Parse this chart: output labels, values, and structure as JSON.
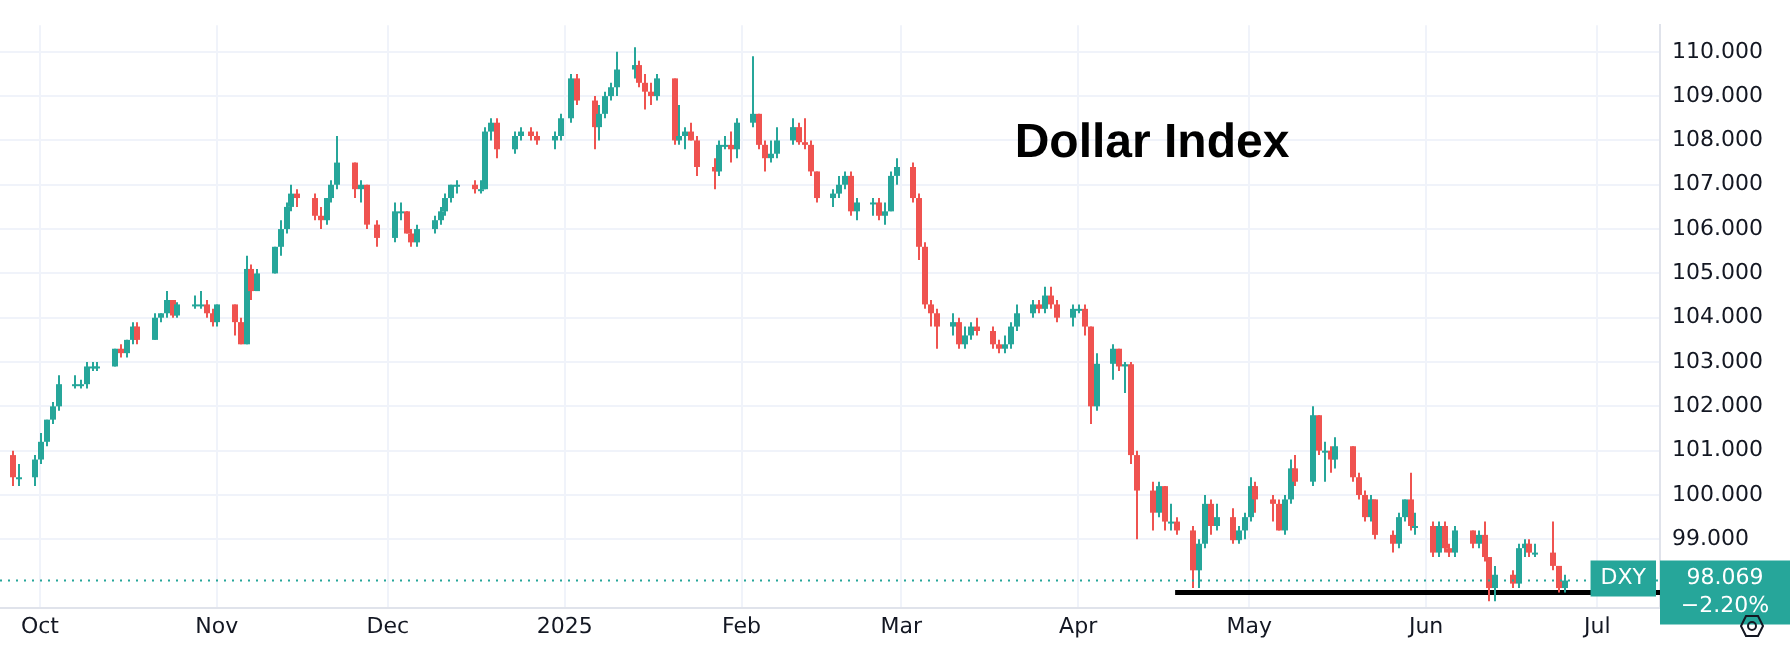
{
  "chart_data": {
    "type": "candlestick",
    "title": "Dollar Index",
    "x": [
      "2024-09-26",
      "2024-09-27",
      "2024-09-30",
      "2024-10-01",
      "2024-10-02",
      "2024-10-03",
      "2024-10-04",
      "2024-10-07",
      "2024-10-08",
      "2024-10-09",
      "2024-10-10",
      "2024-10-11",
      "2024-10-14",
      "2024-10-15",
      "2024-10-16",
      "2024-10-17",
      "2024-10-18",
      "2024-10-21",
      "2024-10-22",
      "2024-10-23",
      "2024-10-24",
      "2024-10-25",
      "2024-10-28",
      "2024-10-29",
      "2024-10-30",
      "2024-10-31",
      "2024-11-01",
      "2024-11-04",
      "2024-11-05",
      "2024-11-06",
      "2024-11-07",
      "2024-11-08",
      "2024-11-11",
      "2024-11-12",
      "2024-11-13",
      "2024-11-14",
      "2024-11-15",
      "2024-11-18",
      "2024-11-19",
      "2024-11-20",
      "2024-11-21",
      "2024-11-22",
      "2024-11-25",
      "2024-11-26",
      "2024-11-27",
      "2024-11-29",
      "2024-12-02",
      "2024-12-03",
      "2024-12-04",
      "2024-12-05",
      "2024-12-06",
      "2024-12-09",
      "2024-12-10",
      "2024-12-11",
      "2024-12-12",
      "2024-12-13",
      "2024-12-16",
      "2024-12-17",
      "2024-12-18",
      "2024-12-19",
      "2024-12-20",
      "2024-12-23",
      "2024-12-24",
      "2024-12-26",
      "2024-12-27",
      "2024-12-30",
      "2024-12-31",
      "2025-01-02",
      "2025-01-03",
      "2025-01-06",
      "2025-01-07",
      "2025-01-08",
      "2025-01-09",
      "2025-01-10",
      "2025-01-13",
      "2025-01-14",
      "2025-01-15",
      "2025-01-16",
      "2025-01-17",
      "2025-01-20",
      "2025-01-21",
      "2025-01-22",
      "2025-01-23",
      "2025-01-24",
      "2025-01-27",
      "2025-01-28",
      "2025-01-29",
      "2025-01-30",
      "2025-01-31",
      "2025-02-03",
      "2025-02-04",
      "2025-02-05",
      "2025-02-06",
      "2025-02-07",
      "2025-02-10",
      "2025-02-11",
      "2025-02-12",
      "2025-02-13",
      "2025-02-14",
      "2025-02-17",
      "2025-02-18",
      "2025-02-19",
      "2025-02-20",
      "2025-02-21",
      "2025-02-24",
      "2025-02-25",
      "2025-02-26",
      "2025-02-27",
      "2025-02-28",
      "2025-03-03",
      "2025-03-04",
      "2025-03-05",
      "2025-03-06",
      "2025-03-07",
      "2025-03-10",
      "2025-03-11",
      "2025-03-12",
      "2025-03-13",
      "2025-03-14",
      "2025-03-17",
      "2025-03-18",
      "2025-03-19",
      "2025-03-20",
      "2025-03-21",
      "2025-03-24",
      "2025-03-25",
      "2025-03-26",
      "2025-03-27",
      "2025-03-28",
      "2025-03-31",
      "2025-04-01",
      "2025-04-02",
      "2025-04-03",
      "2025-04-04",
      "2025-04-07",
      "2025-04-08",
      "2025-04-09",
      "2025-04-10",
      "2025-04-11",
      "2025-04-14",
      "2025-04-15",
      "2025-04-16",
      "2025-04-17",
      "2025-04-18",
      "2025-04-21",
      "2025-04-22",
      "2025-04-23",
      "2025-04-24",
      "2025-04-25",
      "2025-04-28",
      "2025-04-29",
      "2025-04-30",
      "2025-05-01",
      "2025-05-02",
      "2025-05-05",
      "2025-05-06",
      "2025-05-07",
      "2025-05-08",
      "2025-05-09",
      "2025-05-12",
      "2025-05-13",
      "2025-05-14",
      "2025-05-15",
      "2025-05-16",
      "2025-05-19",
      "2025-05-20",
      "2025-05-21",
      "2025-05-22",
      "2025-05-23",
      "2025-05-26",
      "2025-05-27",
      "2025-05-28",
      "2025-05-29",
      "2025-05-30",
      "2025-06-02",
      "2025-06-03",
      "2025-06-04",
      "2025-06-05",
      "2025-06-06",
      "2025-06-09",
      "2025-06-10",
      "2025-06-11",
      "2025-06-12",
      "2025-06-13",
      "2025-06-16",
      "2025-06-17",
      "2025-06-18",
      "2025-06-19",
      "2025-06-20",
      "2025-06-23",
      "2025-06-24",
      "2025-06-25"
    ],
    "ohlc": [
      [
        100.9,
        101.0,
        100.2,
        100.4
      ],
      [
        100.4,
        100.7,
        100.2,
        100.4
      ],
      [
        100.4,
        100.9,
        100.2,
        100.8
      ],
      [
        100.8,
        101.4,
        100.7,
        101.2
      ],
      [
        101.2,
        101.7,
        101.1,
        101.7
      ],
      [
        101.7,
        102.1,
        101.6,
        102.0
      ],
      [
        102.0,
        102.7,
        101.9,
        102.5
      ],
      [
        102.5,
        102.7,
        102.4,
        102.5
      ],
      [
        102.5,
        102.6,
        102.4,
        102.5
      ],
      [
        102.5,
        103.0,
        102.4,
        102.9
      ],
      [
        102.9,
        103.0,
        102.8,
        102.9
      ],
      [
        102.9,
        103.0,
        102.8,
        102.9
      ],
      [
        102.9,
        103.3,
        102.9,
        103.3
      ],
      [
        103.3,
        103.4,
        103.1,
        103.2
      ],
      [
        103.2,
        103.5,
        103.1,
        103.5
      ],
      [
        103.5,
        103.9,
        103.4,
        103.8
      ],
      [
        103.8,
        103.9,
        103.4,
        103.5
      ],
      [
        103.5,
        104.1,
        103.5,
        104.0
      ],
      [
        104.0,
        104.1,
        103.9,
        104.1
      ],
      [
        104.1,
        104.6,
        104.0,
        104.4
      ],
      [
        104.4,
        104.4,
        104.0,
        104.05
      ],
      [
        104.05,
        104.35,
        104.0,
        104.3
      ],
      [
        104.3,
        104.5,
        104.2,
        104.3
      ],
      [
        104.3,
        104.6,
        104.2,
        104.3
      ],
      [
        104.3,
        104.4,
        104.0,
        104.1
      ],
      [
        104.1,
        104.2,
        103.8,
        103.9
      ],
      [
        103.9,
        104.3,
        103.8,
        104.3
      ],
      [
        104.3,
        104.3,
        103.6,
        103.9
      ],
      [
        103.9,
        104.0,
        103.4,
        103.4
      ],
      [
        103.4,
        105.4,
        103.4,
        105.1
      ],
      [
        105.1,
        105.2,
        104.4,
        104.6
      ],
      [
        104.6,
        105.1,
        104.6,
        105.0
      ],
      [
        105.0,
        105.6,
        105.0,
        105.6
      ],
      [
        105.6,
        106.2,
        105.4,
        106.0
      ],
      [
        106.0,
        106.6,
        105.9,
        106.5
      ],
      [
        106.5,
        107.0,
        106.4,
        106.8
      ],
      [
        106.8,
        106.9,
        106.5,
        106.7
      ],
      [
        106.7,
        106.8,
        106.2,
        106.3
      ],
      [
        106.3,
        106.5,
        106.0,
        106.2
      ],
      [
        106.2,
        106.7,
        106.1,
        106.7
      ],
      [
        106.7,
        107.1,
        106.6,
        107.0
      ],
      [
        107.0,
        108.1,
        106.9,
        107.5
      ],
      [
        107.5,
        107.5,
        106.7,
        106.9
      ],
      [
        106.9,
        107.1,
        106.6,
        107.0
      ],
      [
        107.0,
        107.0,
        106.0,
        106.1
      ],
      [
        106.1,
        106.2,
        105.6,
        105.8
      ],
      [
        105.8,
        106.6,
        105.7,
        106.4
      ],
      [
        106.4,
        106.6,
        106.2,
        106.4
      ],
      [
        106.4,
        106.4,
        105.9,
        105.9
      ],
      [
        105.9,
        106.0,
        105.6,
        105.7
      ],
      [
        105.7,
        106.1,
        105.6,
        106.0
      ],
      [
        106.0,
        106.3,
        105.9,
        106.2
      ],
      [
        106.2,
        106.5,
        106.1,
        106.4
      ],
      [
        106.4,
        106.8,
        106.3,
        106.7
      ],
      [
        106.7,
        107.0,
        106.6,
        107.0
      ],
      [
        107.0,
        107.1,
        106.8,
        107.0
      ],
      [
        107.0,
        107.1,
        106.8,
        106.9
      ],
      [
        106.9,
        107.1,
        106.8,
        106.9
      ],
      [
        106.9,
        108.3,
        106.9,
        108.2
      ],
      [
        108.2,
        108.5,
        108.0,
        108.4
      ],
      [
        108.4,
        108.5,
        107.6,
        107.8
      ],
      [
        107.8,
        108.2,
        107.7,
        108.1
      ],
      [
        108.1,
        108.3,
        108.0,
        108.2
      ],
      [
        108.2,
        108.3,
        108.0,
        108.1
      ],
      [
        108.1,
        108.2,
        107.9,
        108.0
      ],
      [
        108.0,
        108.2,
        107.8,
        108.1
      ],
      [
        108.1,
        108.6,
        108.0,
        108.5
      ],
      [
        108.5,
        109.5,
        108.4,
        109.4
      ],
      [
        109.4,
        109.5,
        108.8,
        108.9
      ],
      [
        108.9,
        109.0,
        107.8,
        108.3
      ],
      [
        108.3,
        108.8,
        108.0,
        108.6
      ],
      [
        108.6,
        109.1,
        108.5,
        109.0
      ],
      [
        109.0,
        109.3,
        108.9,
        109.2
      ],
      [
        109.2,
        110.0,
        109.0,
        109.6
      ],
      [
        109.6,
        110.1,
        109.4,
        109.7
      ],
      [
        109.7,
        109.8,
        109.2,
        109.3
      ],
      [
        109.3,
        109.5,
        108.7,
        109.1
      ],
      [
        109.1,
        109.3,
        108.8,
        109.0
      ],
      [
        109.0,
        109.5,
        108.9,
        109.4
      ],
      [
        109.4,
        109.4,
        107.9,
        108.0
      ],
      [
        108.0,
        108.8,
        107.9,
        108.1
      ],
      [
        108.1,
        108.3,
        107.8,
        108.2
      ],
      [
        108.2,
        108.4,
        108.0,
        108.0
      ],
      [
        108.0,
        108.1,
        107.2,
        107.4
      ],
      [
        107.4,
        107.6,
        106.9,
        107.3
      ],
      [
        107.3,
        108.0,
        107.2,
        107.9
      ],
      [
        107.9,
        108.1,
        107.8,
        107.9
      ],
      [
        107.9,
        108.2,
        107.5,
        107.8
      ],
      [
        107.8,
        108.5,
        107.6,
        108.4
      ],
      [
        108.4,
        109.9,
        108.3,
        108.6
      ],
      [
        108.6,
        108.6,
        107.8,
        107.9
      ],
      [
        107.9,
        108.0,
        107.3,
        107.6
      ],
      [
        107.6,
        108.0,
        107.5,
        107.7
      ],
      [
        107.7,
        108.3,
        107.6,
        108.0
      ],
      [
        108.0,
        108.5,
        107.9,
        108.3
      ],
      [
        108.3,
        108.4,
        107.9,
        107.96
      ],
      [
        107.96,
        108.5,
        107.8,
        107.9
      ],
      [
        107.9,
        108.0,
        107.2,
        107.3
      ],
      [
        107.3,
        107.3,
        106.6,
        106.7
      ],
      [
        106.7,
        106.9,
        106.5,
        106.8
      ],
      [
        106.8,
        107.2,
        106.7,
        107.0
      ],
      [
        107.0,
        107.3,
        106.9,
        107.2
      ],
      [
        107.2,
        107.3,
        106.3,
        106.4
      ],
      [
        106.4,
        106.7,
        106.2,
        106.6
      ],
      [
        106.6,
        106.7,
        106.3,
        106.6
      ],
      [
        106.6,
        106.7,
        106.2,
        106.3
      ],
      [
        106.3,
        106.6,
        106.1,
        106.4
      ],
      [
        106.4,
        107.3,
        106.4,
        107.2
      ],
      [
        107.2,
        107.6,
        107.0,
        107.4
      ],
      [
        107.4,
        107.5,
        106.6,
        106.7
      ],
      [
        106.7,
        106.8,
        105.3,
        105.6
      ],
      [
        105.6,
        105.7,
        104.2,
        104.3
      ],
      [
        104.3,
        104.4,
        103.8,
        104.1
      ],
      [
        104.1,
        104.2,
        103.3,
        103.8
      ],
      [
        103.8,
        104.1,
        103.6,
        103.9
      ],
      [
        103.9,
        104.0,
        103.3,
        103.4
      ],
      [
        103.4,
        103.8,
        103.3,
        103.6
      ],
      [
        103.6,
        103.9,
        103.5,
        103.8
      ],
      [
        103.8,
        104.0,
        103.6,
        103.7
      ],
      [
        103.7,
        103.8,
        103.3,
        103.4
      ],
      [
        103.4,
        103.5,
        103.2,
        103.3
      ],
      [
        103.3,
        103.6,
        103.2,
        103.4
      ],
      [
        103.4,
        103.9,
        103.3,
        103.8
      ],
      [
        103.8,
        104.3,
        103.7,
        104.1
      ],
      [
        104.1,
        104.4,
        104.0,
        104.3
      ],
      [
        104.3,
        104.4,
        104.1,
        104.2
      ],
      [
        104.2,
        104.7,
        104.1,
        104.5
      ],
      [
        104.5,
        104.7,
        104.2,
        104.3
      ],
      [
        104.3,
        104.4,
        103.9,
        104.0
      ],
      [
        104.0,
        104.3,
        103.8,
        104.2
      ],
      [
        104.2,
        104.3,
        104.1,
        104.2
      ],
      [
        104.2,
        104.3,
        103.6,
        103.8
      ],
      [
        103.8,
        103.8,
        101.6,
        102.0
      ],
      [
        102.0,
        103.2,
        101.9,
        102.96
      ],
      [
        102.96,
        103.4,
        102.6,
        103.3
      ],
      [
        103.3,
        103.3,
        102.8,
        102.9
      ],
      [
        102.9,
        103.0,
        102.3,
        102.95
      ],
      [
        102.95,
        103.0,
        100.7,
        100.9
      ],
      [
        100.9,
        101.0,
        99.0,
        100.1
      ],
      [
        100.1,
        100.3,
        99.2,
        99.6
      ],
      [
        99.6,
        100.3,
        99.5,
        100.2
      ],
      [
        100.2,
        100.2,
        99.2,
        99.4
      ],
      [
        99.4,
        99.8,
        99.2,
        99.4
      ],
      [
        99.4,
        99.5,
        99.1,
        99.2
      ],
      [
        99.2,
        99.3,
        97.9,
        98.3
      ],
      [
        98.3,
        99.0,
        97.9,
        98.9
      ],
      [
        98.9,
        100.0,
        98.8,
        99.8
      ],
      [
        99.8,
        99.9,
        99.1,
        99.3
      ],
      [
        99.3,
        99.8,
        99.2,
        99.5
      ],
      [
        99.5,
        99.7,
        98.9,
        98.98
      ],
      [
        98.98,
        99.3,
        98.9,
        99.2
      ],
      [
        99.2,
        99.6,
        99.0,
        99.5
      ],
      [
        99.5,
        100.4,
        99.4,
        100.2
      ],
      [
        100.2,
        100.3,
        99.6,
        99.9
      ],
      [
        99.9,
        100.0,
        99.4,
        99.8
      ],
      [
        99.8,
        99.9,
        99.2,
        99.2
      ],
      [
        99.2,
        100.0,
        99.1,
        99.9
      ],
      [
        99.9,
        100.8,
        99.8,
        100.6
      ],
      [
        100.6,
        100.9,
        100.2,
        100.3
      ],
      [
        100.3,
        102.0,
        100.2,
        101.8
      ],
      [
        101.8,
        101.8,
        100.9,
        101.0
      ],
      [
        101.0,
        101.2,
        100.3,
        101.0
      ],
      [
        101.0,
        101.1,
        100.5,
        100.8
      ],
      [
        100.8,
        101.3,
        100.6,
        101.1
      ],
      [
        101.1,
        101.1,
        100.3,
        100.4
      ],
      [
        100.4,
        100.5,
        99.9,
        100.0
      ],
      [
        100.0,
        100.1,
        99.4,
        99.5
      ],
      [
        99.5,
        100.0,
        99.4,
        99.9
      ],
      [
        99.9,
        99.9,
        99.0,
        99.1
      ],
      [
        99.1,
        99.2,
        98.7,
        98.9
      ],
      [
        98.9,
        99.6,
        98.8,
        99.5
      ],
      [
        99.5,
        99.9,
        99.4,
        99.9
      ],
      [
        99.9,
        100.5,
        99.2,
        99.3
      ],
      [
        99.3,
        99.6,
        99.1,
        99.3
      ],
      [
        99.3,
        99.4,
        98.6,
        98.7
      ],
      [
        98.7,
        99.4,
        98.6,
        99.3
      ],
      [
        99.3,
        99.4,
        98.7,
        98.8
      ],
      [
        98.8,
        98.9,
        98.6,
        98.7
      ],
      [
        98.7,
        99.3,
        98.6,
        99.2
      ],
      [
        99.2,
        99.2,
        98.8,
        98.9
      ],
      [
        98.9,
        99.2,
        98.8,
        99.1
      ],
      [
        99.1,
        99.4,
        98.5,
        98.6
      ],
      [
        98.6,
        98.6,
        97.6,
        97.9
      ],
      [
        97.9,
        98.4,
        97.6,
        98.2
      ],
      [
        98.2,
        98.3,
        97.9,
        98.0
      ],
      [
        98.0,
        98.9,
        97.9,
        98.8
      ],
      [
        98.8,
        99.0,
        98.6,
        98.9
      ],
      [
        98.9,
        99.0,
        98.6,
        98.7
      ],
      [
        98.7,
        98.9,
        98.6,
        98.7
      ],
      [
        98.7,
        99.4,
        98.3,
        98.4
      ],
      [
        98.4,
        98.4,
        97.8,
        97.9
      ],
      [
        97.9,
        98.2,
        97.8,
        98.069
      ]
    ],
    "series": [
      {
        "type": "line",
        "color": "#000000",
        "x": [
          "2025-04-18",
          "2025-07-12"
        ],
        "values": [
          97.8,
          97.8
        ]
      }
    ],
    "xlim": [
      "2024-09-24",
      "2025-07-12"
    ],
    "xticks": [
      {
        "value": "2024-10-01",
        "label": "Oct"
      },
      {
        "value": "2024-11-01",
        "label": "Nov"
      },
      {
        "value": "2024-12-01",
        "label": "Dec"
      },
      {
        "value": "2025-01-01",
        "label": "2025"
      },
      {
        "value": "2025-02-01",
        "label": "Feb"
      },
      {
        "value": "2025-03-01",
        "label": "Mar"
      },
      {
        "value": "2025-04-01",
        "label": "Apr"
      },
      {
        "value": "2025-05-01",
        "label": "May"
      },
      {
        "value": "2025-06-01",
        "label": "Jun"
      },
      {
        "value": "2025-07-01",
        "label": "Jul"
      }
    ],
    "ylim": [
      97.45,
      110.6
    ],
    "yticks": [
      {
        "value": 99,
        "label": "99.000"
      },
      {
        "value": 100,
        "label": "100.000"
      },
      {
        "value": 101,
        "label": "101.000"
      },
      {
        "value": 102,
        "label": "102.000"
      },
      {
        "value": 103,
        "label": "103.000"
      },
      {
        "value": 104,
        "label": "104.000"
      },
      {
        "value": 105,
        "label": "105.000"
      },
      {
        "value": 106,
        "label": "106.000"
      },
      {
        "value": 107,
        "label": "107.000"
      },
      {
        "value": 108,
        "label": "108.000"
      },
      {
        "value": 109,
        "label": "109.000"
      },
      {
        "value": 110,
        "label": "110.000"
      }
    ],
    "ref_lines": [
      {
        "axis": "y",
        "value": 98.069,
        "label": "98.069",
        "color": "#26a69a",
        "line_style": "dotted"
      }
    ],
    "annotations": [
      "DXY",
      "−2.20%"
    ],
    "grid": true,
    "legend": false
  }
}
